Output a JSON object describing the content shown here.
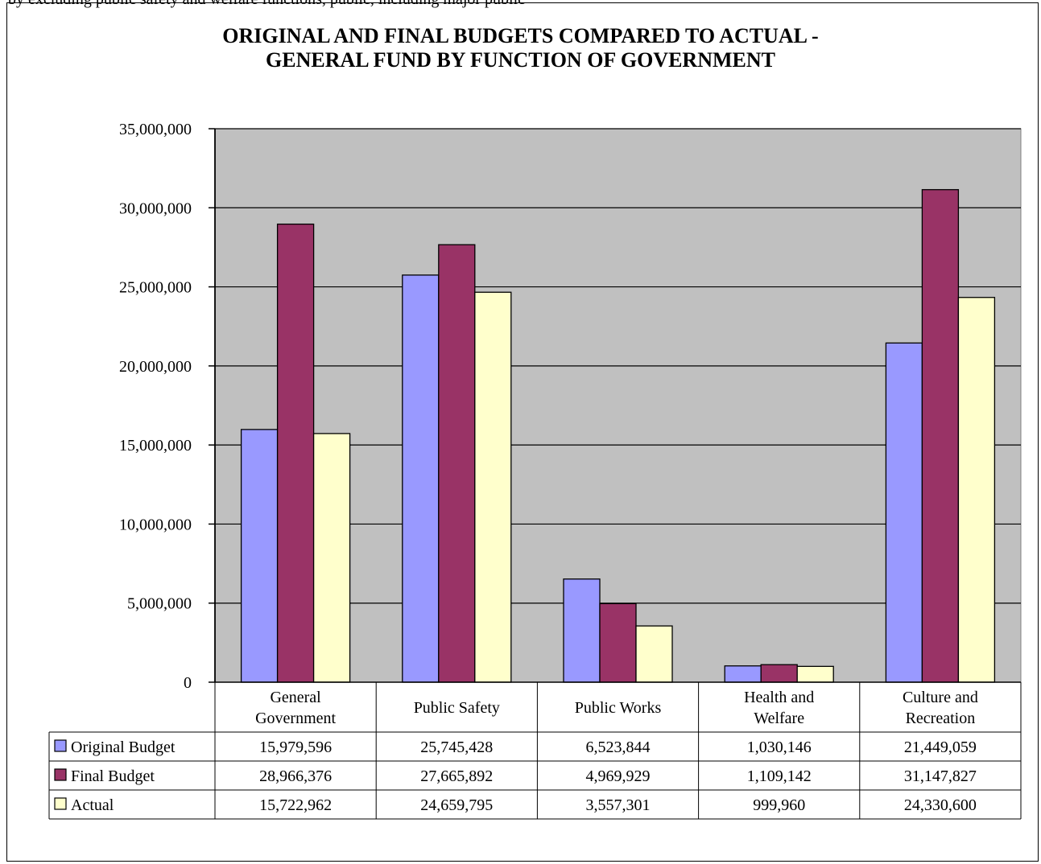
{
  "page": {
    "top_text": "by excluding public safety and welfare functions, public, including major public"
  },
  "chart_data": {
    "type": "bar",
    "title_line1": "ORIGINAL AND FINAL BUDGETS  COMPARED TO ACTUAL -",
    "title_line2": "GENERAL FUND BY FUNCTION  OF GOVERNMENT",
    "categories": [
      [
        "General",
        "Government"
      ],
      [
        "Public Safety"
      ],
      [
        "Public Works"
      ],
      [
        "Health and",
        "Welfare"
      ],
      [
        "Culture and",
        "Recreation"
      ]
    ],
    "series": [
      {
        "name": "Original Budget",
        "color": "#9999ff",
        "values": [
          15979596,
          25745428,
          6523844,
          1030146,
          21449059
        ],
        "labels": [
          "15,979,596",
          "25,745,428",
          "6,523,844",
          "1,030,146",
          "21,449,059"
        ]
      },
      {
        "name": "Final Budget",
        "color": "#993366",
        "values": [
          28966376,
          27665892,
          4969929,
          1109142,
          31147827
        ],
        "labels": [
          "28,966,376",
          "27,665,892",
          "4,969,929",
          "1,109,142",
          "31,147,827"
        ]
      },
      {
        "name": "Actual",
        "color": "#ffffcc",
        "values": [
          15722962,
          24659795,
          3557301,
          999960,
          24330600
        ],
        "labels": [
          "15,722,962",
          "24,659,795",
          "3,557,301",
          "999,960",
          "24,330,600"
        ]
      }
    ],
    "ylim": [
      0,
      35000000
    ],
    "yticks": [
      0,
      5000000,
      10000000,
      15000000,
      20000000,
      25000000,
      30000000,
      35000000
    ],
    "ytick_labels": [
      "0",
      "5,000,000",
      "10,000,000",
      "15,000,000",
      "20,000,000",
      "25,000,000",
      "30,000,000",
      "35,000,000"
    ],
    "grid": true,
    "plot_background": "#c0c0c0",
    "legend": "data-table"
  }
}
